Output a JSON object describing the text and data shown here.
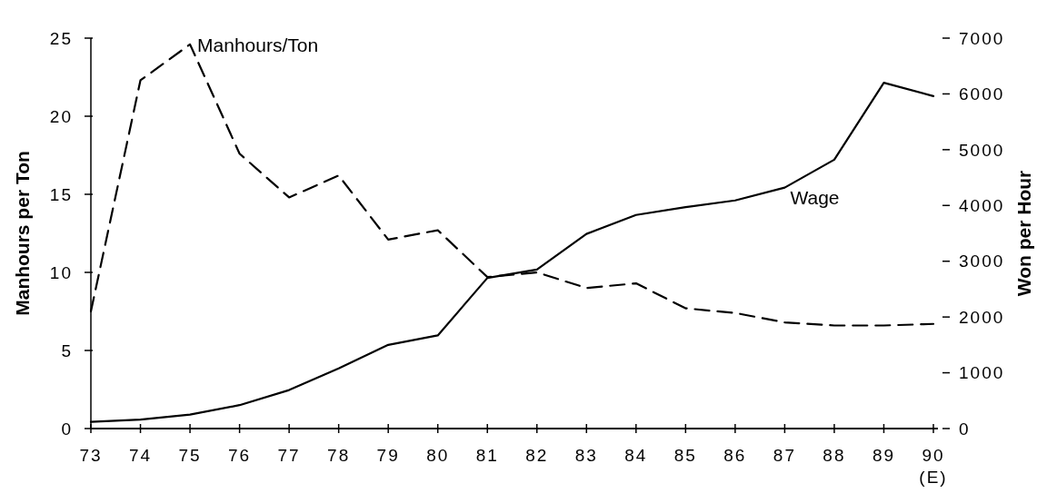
{
  "chart_data": {
    "type": "line",
    "xlabel": null,
    "ylabel": "Manhours per Ton",
    "y2label": "Won per Hour",
    "categories": [
      "73",
      "74",
      "75",
      "76",
      "77",
      "78",
      "79",
      "80",
      "81",
      "82",
      "83",
      "84",
      "85",
      "86",
      "87",
      "88",
      "89",
      "90\n(E)"
    ],
    "ylim": [
      0,
      25
    ],
    "yticks": [
      0,
      5,
      10,
      15,
      20,
      25
    ],
    "y2lim": [
      0,
      7000
    ],
    "y2ticks": [
      0,
      1000,
      2000,
      3000,
      4000,
      5000,
      6000,
      7000
    ],
    "grid": false,
    "marker": "none",
    "series": [
      {
        "name": "Manhours/Ton",
        "color": "#000000",
        "line_style": "dashed",
        "values": [
          7.5,
          22.3,
          24.6,
          17.6,
          14.8,
          16.2,
          12.1,
          12.7,
          9.7,
          10.0,
          9.0,
          9.3,
          7.7,
          7.4,
          6.8,
          6.6,
          6.6,
          6.7
        ]
      },
      {
        "name": "Wage",
        "color": "#000000",
        "line_style": "solid",
        "axis": "y2",
        "values": [
          120,
          160,
          250,
          420,
          690,
          1080,
          1500,
          1670,
          2700,
          2850,
          3490,
          3830,
          3970,
          4090,
          4320,
          4820,
          6200,
          5960
        ]
      }
    ]
  }
}
